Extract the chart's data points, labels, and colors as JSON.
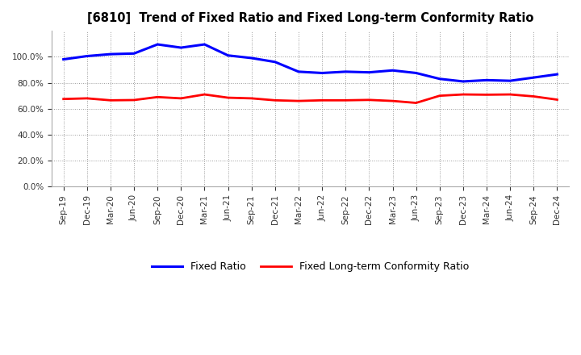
{
  "title": "[6810]  Trend of Fixed Ratio and Fixed Long-term Conformity Ratio",
  "x_labels": [
    "Sep-19",
    "Dec-19",
    "Mar-20",
    "Jun-20",
    "Sep-20",
    "Dec-20",
    "Mar-21",
    "Jun-21",
    "Sep-21",
    "Dec-21",
    "Mar-22",
    "Jun-22",
    "Sep-22",
    "Dec-22",
    "Mar-23",
    "Jun-23",
    "Sep-23",
    "Dec-23",
    "Mar-24",
    "Jun-24",
    "Sep-24",
    "Dec-24"
  ],
  "fixed_ratio": [
    0.98,
    1.005,
    1.02,
    1.025,
    1.095,
    1.07,
    1.095,
    1.01,
    0.99,
    0.96,
    0.885,
    0.875,
    0.885,
    0.88,
    0.895,
    0.875,
    0.83,
    0.81,
    0.82,
    0.815,
    0.84,
    0.865
  ],
  "fixed_lt_ratio": [
    0.675,
    0.68,
    0.665,
    0.667,
    0.69,
    0.68,
    0.71,
    0.685,
    0.68,
    0.665,
    0.66,
    0.665,
    0.665,
    0.668,
    0.66,
    0.645,
    0.7,
    0.71,
    0.708,
    0.71,
    0.695,
    0.67
  ],
  "fixed_ratio_color": "#0000FF",
  "fixed_lt_ratio_color": "#FF0000",
  "ylim": [
    0.0,
    1.2
  ],
  "yticks": [
    0.0,
    0.2,
    0.4,
    0.6,
    0.8,
    1.0
  ],
  "background_color": "#FFFFFF",
  "grid_color": "#999999",
  "legend_fixed_ratio": "Fixed Ratio",
  "legend_fixed_lt_ratio": "Fixed Long-term Conformity Ratio"
}
